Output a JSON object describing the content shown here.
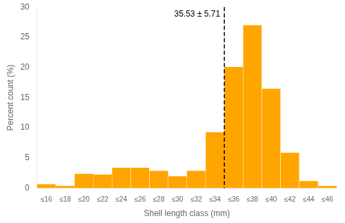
{
  "chart_data": {
    "type": "bar",
    "categories": [
      "≤16",
      "≤18",
      "≤20",
      "≤22",
      "≤24",
      "≤26",
      "≤28",
      "≤30",
      "≤32",
      "≤34",
      "≤36",
      "≤38",
      "≤40",
      "≤42",
      "≤44",
      "≤46"
    ],
    "values": [
      0.7,
      0.4,
      2.4,
      2.3,
      3.4,
      3.4,
      2.9,
      2.0,
      2.9,
      9.3,
      20.1,
      27.0,
      16.5,
      5.9,
      1.2,
      0.4
    ],
    "color": "#FFA500",
    "xlabel": "Shell length class (mm)",
    "ylabel": "Percent count (%)",
    "ylim": [
      0,
      30
    ],
    "yticks": [
      0,
      5,
      10,
      15,
      20,
      25,
      30
    ],
    "grid": false,
    "annotations": [
      {
        "text": "35.53 ± 5.71",
        "line_after": "≤34",
        "line_style": "dashed",
        "color": "black"
      }
    ]
  }
}
